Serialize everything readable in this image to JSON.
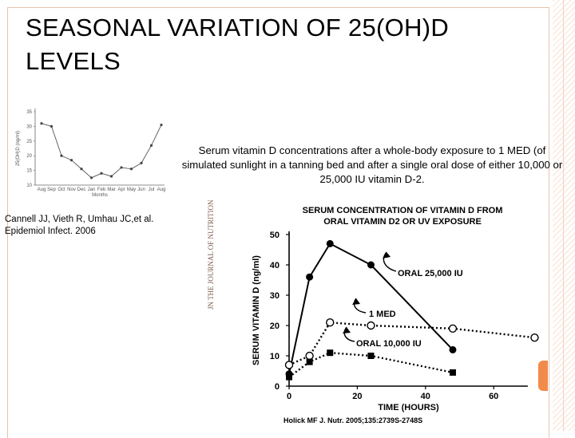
{
  "slide": {
    "title": "SEASONAL VARIATION OF 25(OH)D LEVELS",
    "caption": "Serum vitamin D concentrations after a whole-body exposure to 1 MED (of simulated sunlight in a tanning bed and after a single oral dose of either 10,000 or 25,000 IU vitamin D-2.",
    "citation": "Cannell JJ, Vieth R, Umhau JC,et al. Epidemiol Infect. 2006",
    "reference": "Holick MF J. Nutr. 2005;135:2739S-2748S",
    "journal_mark_text": "JN THE JOURNAL OF NUTRITION",
    "colors": {
      "accent": "#f28a4a",
      "border": "#e8c2b0",
      "ink": "#000000"
    }
  },
  "chart_data": [
    {
      "type": "line",
      "title": "",
      "xlabel": "Months",
      "ylabel": "25(OH)D (ng/ml)",
      "categories": [
        "Aug",
        "Sep",
        "Oct",
        "Nov",
        "Dec",
        "Jan",
        "Feb",
        "Mar",
        "Apr",
        "May",
        "Jun",
        "Jul",
        "Aug"
      ],
      "values": [
        31,
        30,
        20,
        18.5,
        15.5,
        12.5,
        14,
        13,
        16,
        15.5,
        17.5,
        23.5,
        30.5
      ],
      "yticks": [
        10,
        15,
        20,
        25,
        30,
        35
      ],
      "ylim": [
        10,
        35
      ],
      "grid": false
    },
    {
      "type": "line",
      "title": [
        "SERUM CONCENTRATION OF VITAMIN D FROM",
        "ORAL VITAMIN D2 OR UV EXPOSURE"
      ],
      "xlabel": "TIME (HOURS)",
      "ylabel": "SERUM VITAMIN D (ng/ml)",
      "xticks": [
        0,
        20,
        40,
        60
      ],
      "yticks": [
        0,
        10,
        20,
        30,
        40,
        50
      ],
      "xlim": [
        0,
        70
      ],
      "ylim": [
        0,
        50
      ],
      "grid": false,
      "series": [
        {
          "name": "ORAL 25,000 IU",
          "marker": "filled-circle",
          "line": "solid",
          "x": [
            0,
            6,
            12,
            24,
            48
          ],
          "y": [
            4,
            36,
            47,
            40,
            12
          ]
        },
        {
          "name": "1 MED",
          "marker": "open-circle",
          "line": "dotted",
          "x": [
            0,
            6,
            12,
            24,
            48,
            72
          ],
          "y": [
            7,
            10,
            21,
            20,
            19,
            16
          ]
        },
        {
          "name": "ORAL 10,000 IU",
          "marker": "filled-square",
          "line": "dotted",
          "x": [
            0,
            6,
            12,
            24,
            48
          ],
          "y": [
            3,
            8,
            11,
            10,
            4.5
          ]
        }
      ]
    }
  ]
}
